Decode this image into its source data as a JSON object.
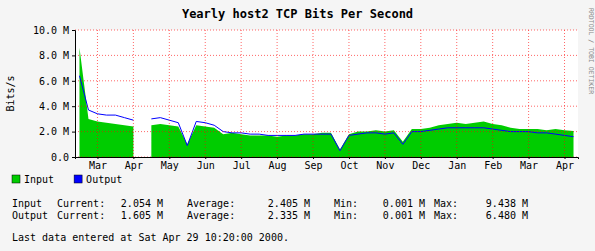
{
  "chart_data": {
    "type": "area",
    "title": "Yearly host2 TCP Bits Per Second",
    "y_label": "Bits/s",
    "categories": [
      null,
      null,
      "Mar",
      null,
      null,
      null,
      "Apr",
      null,
      null,
      null,
      "May",
      null,
      null,
      null,
      "Jun",
      null,
      null,
      null,
      "Jul",
      null,
      null,
      null,
      "Aug",
      null,
      null,
      null,
      "Sep",
      null,
      null,
      null,
      "Oct",
      null,
      null,
      null,
      "Nov",
      null,
      null,
      null,
      "Dec",
      null,
      null,
      null,
      "Jan",
      null,
      null,
      null,
      "Feb",
      null,
      null,
      null,
      "Mar",
      null,
      null,
      null,
      "Apr",
      null
    ],
    "series": [
      {
        "name": "Input",
        "type": "area",
        "color": "#00cc00",
        "values": [
          8600000,
          3000000,
          2800000,
          2700000,
          2600000,
          2500000,
          2400000,
          null,
          2500000,
          2600000,
          2500000,
          2400000,
          1000000,
          2500000,
          2400000,
          2300000,
          1800000,
          1900000,
          1800000,
          1700000,
          1700000,
          1700000,
          1600000,
          1700000,
          1700000,
          1800000,
          1800000,
          1900000,
          1900000,
          600000,
          1800000,
          2000000,
          2000000,
          2100000,
          2000000,
          2100000,
          1200000,
          2200000,
          2200000,
          2300000,
          2500000,
          2600000,
          2700000,
          2600000,
          2700000,
          2800000,
          2600000,
          2500000,
          2300000,
          2200000,
          2200000,
          2200000,
          2100000,
          2200000,
          2100000,
          2050000
        ]
      },
      {
        "name": "Output",
        "type": "line",
        "color": "#0000ff",
        "values": [
          6400000,
          3700000,
          3400000,
          3300000,
          3300000,
          3100000,
          2900000,
          null,
          3000000,
          3100000,
          2900000,
          2700000,
          900000,
          2800000,
          2700000,
          2500000,
          2000000,
          1900000,
          1900000,
          1800000,
          1800000,
          1700000,
          1700000,
          1700000,
          1700000,
          1800000,
          1800000,
          1800000,
          1800000,
          500000,
          1700000,
          1800000,
          1900000,
          1900000,
          1800000,
          1900000,
          1000000,
          2000000,
          2000000,
          2100000,
          2200000,
          2300000,
          2300000,
          2300000,
          2300000,
          2300000,
          2200000,
          2100000,
          2000000,
          2000000,
          2000000,
          1900000,
          1900000,
          1800000,
          1700000,
          1600000
        ]
      }
    ],
    "ylim": [
      0,
      10000000
    ],
    "yticks": [
      {
        "value": 0,
        "label": "0.0"
      },
      {
        "value": 2000000,
        "label": "2.0 M"
      },
      {
        "value": 4000000,
        "label": "4.0 M"
      },
      {
        "value": 6000000,
        "label": "6.0 M"
      },
      {
        "value": 8000000,
        "label": "8.0 M"
      },
      {
        "value": 10000000,
        "label": "10.0 M"
      }
    ],
    "grid": true,
    "legend": "bottom",
    "stats": {
      "columns": [
        "Current:",
        "Average:",
        "Min:",
        "Max:"
      ],
      "rows": [
        [
          "2.054 M",
          "2.405 M",
          "0.001 M",
          "9.438 M"
        ],
        [
          "1.605 M",
          "2.335 M",
          "0.001 M",
          "6.480 M"
        ]
      ]
    },
    "annotations": [
      "RRDTOOL / TOBI OETIKER",
      "Last data entered at Sat Apr 29 10:20:00 2000."
    ]
  }
}
